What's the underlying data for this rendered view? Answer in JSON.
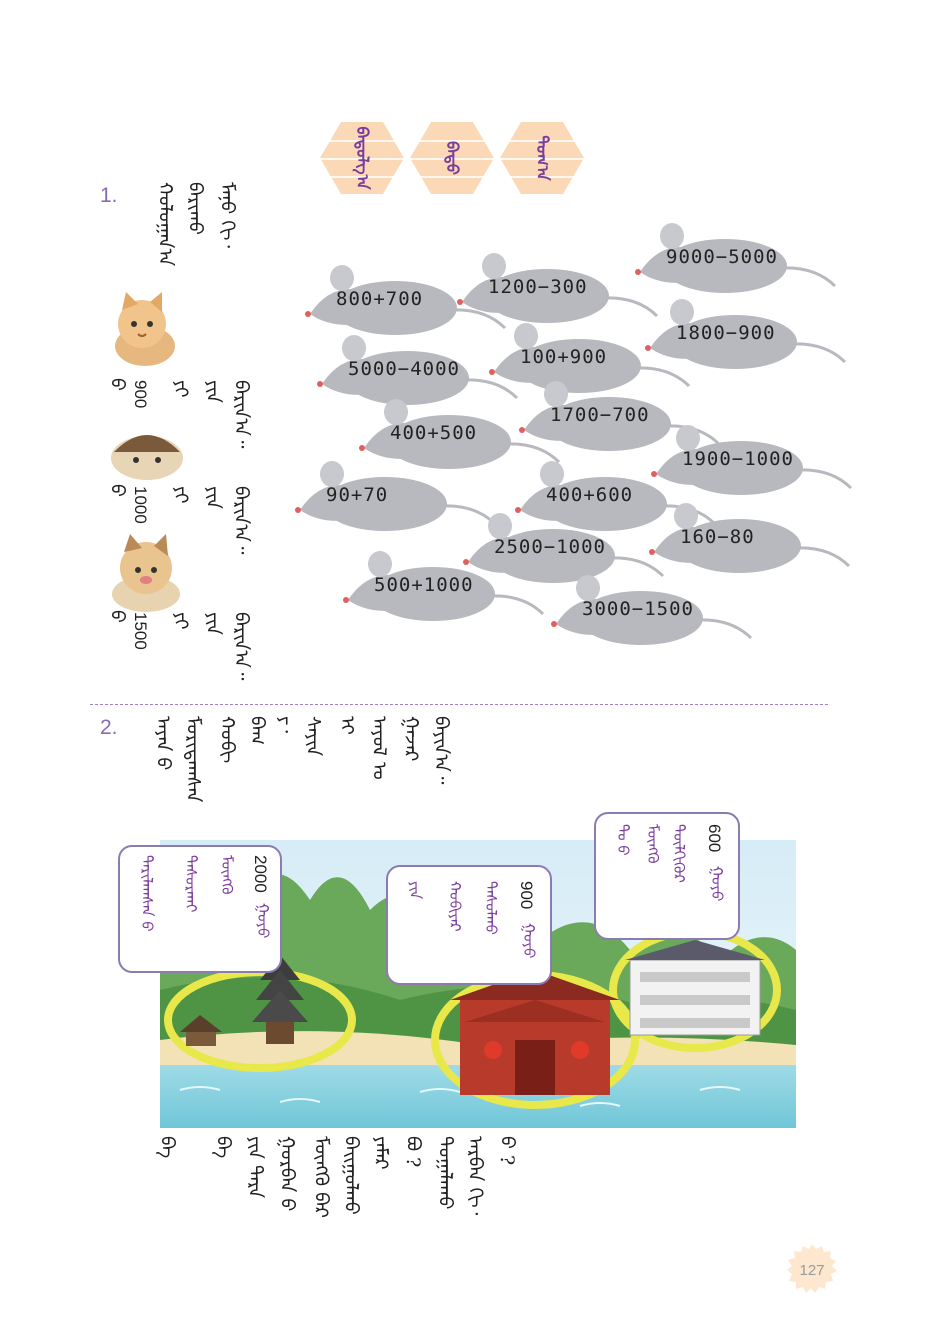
{
  "title": {
    "words": [
      "ᠪᠠᠳᠤᠯᠭ᠎ᠠ",
      "ᠪᠠᠲᠤ",
      "ᠲᠣᠭ᠎ᠠ"
    ]
  },
  "q1": {
    "number": "1.",
    "instruction": [
      "ᠬᠤᠯᠤᠭᠠᠨ᠎ᠠ",
      "ᠪᠠᠷᠢᠬᠤ",
      "ᠮᠠᠨᠤ ᠬᠢ᠂"
    ],
    "cats": [
      {
        "num": "900",
        "t1": "ᠶᠢ",
        "t2": "ᠶᠢᠨ",
        "t3": "ᠪᠠᠷᠢᠨ᠎ᠠ᠃",
        "t4": "ᠪ"
      },
      {
        "num": "1000",
        "t1": "ᠶᠢ",
        "t2": "ᠶᠢᠨ",
        "t3": "ᠪᠠᠷᠢᠨ᠎ᠠ᠃",
        "t4": "ᠪ"
      },
      {
        "num": "1500",
        "t1": "ᠶᠢ",
        "t2": "ᠶᠢᠨ",
        "t3": "ᠪᠠᠷᠢᠨ᠎ᠠ᠃",
        "t4": "ᠪ"
      }
    ],
    "mice": [
      "9000−5000",
      "800+700",
      "1200−300",
      "1800−900",
      "5000−4000",
      "100+900",
      "1700−700",
      "400+500",
      "1900−1000",
      "90+70",
      "400+600",
      "160−80",
      "2500−1000",
      "500+1000",
      "3000−1500"
    ]
  },
  "q2": {
    "number": "2.",
    "lines": [
      "ᠠᠶᠠᠨ ᠪ",
      "ᠮᠣᠷᠢᠲᠠᠭᠰᠠᠨ",
      "ᠬᠤᠪᠢ",
      "ᠪᠠᠭ",
      "ᠶ᠂",
      "ᠰᠠᠶᠢᠨ",
      "ᠢ",
      "ᠠᠶᠤᠯ ᠤ",
      "ᠭᠠᠵᠠᠷ",
      "ᠪᠠᠶᠢᠨ᠎ᠠ᠃"
    ],
    "bubbles": [
      {
        "num": "600",
        "l1": "ᠭᠤᠶᠤ",
        "l2": "ᠲᠦᠯᠬᠢᠭᠦᠷ",
        "l3": "ᠮᠥᠩᠭᠦ",
        "l4": "ᠲᠤ ᠪ"
      },
      {
        "num": "900",
        "l1": "ᠭᠤᠶᠤ",
        "l2": "ᠲᠠᠰᠤᠯᠬᠤ",
        "l3": "ᠬᠤᠪᠢᠶᠠᠷ",
        "l4": "ᠶᠢᠨ"
      },
      {
        "num": "2000",
        "l1": "ᠭᠤᠶᠤ",
        "l2": "ᠮᠥᠩᠭᠦ",
        "l3": "ᠲᠠᠰᠤᠷᠬᠠᠢ",
        "l4": "ᠲᠠᠷᠢᠯᠠᠭᠰᠠᠨ ᠪ"
      }
    ],
    "bottom": [
      "ᠪ ?",
      "ᠠᠷᠪᠠᠨ ᠬᠢ᠂",
      "ᠲᠤᠭᠠᠯᠠᠬᠤ",
      "ᠪᠣ ?",
      "ᠶᠠᠮᠠᠷ",
      "ᠪᠠᠢᠭᠤᠯᠬᠤ",
      "ᠮᠥᠩᠭᠦ ᠪᠡᠷ",
      "ᠭᠤᠷᠪᠠᠨ ᠪ",
      "ᠶᠢᠨ ᠲᠡᠷᠡ",
      "ᠪᠠ"
    ]
  },
  "page_number": "127",
  "colors": {
    "hex_fill": "#fbd9b7",
    "hex_text": "#7a3d9b",
    "number": "#8b6bb6",
    "mouse": "#b7b9bf",
    "divider": "#a080c8",
    "bubble_border": "#8a7bb0",
    "ring": "#e8e84a"
  }
}
